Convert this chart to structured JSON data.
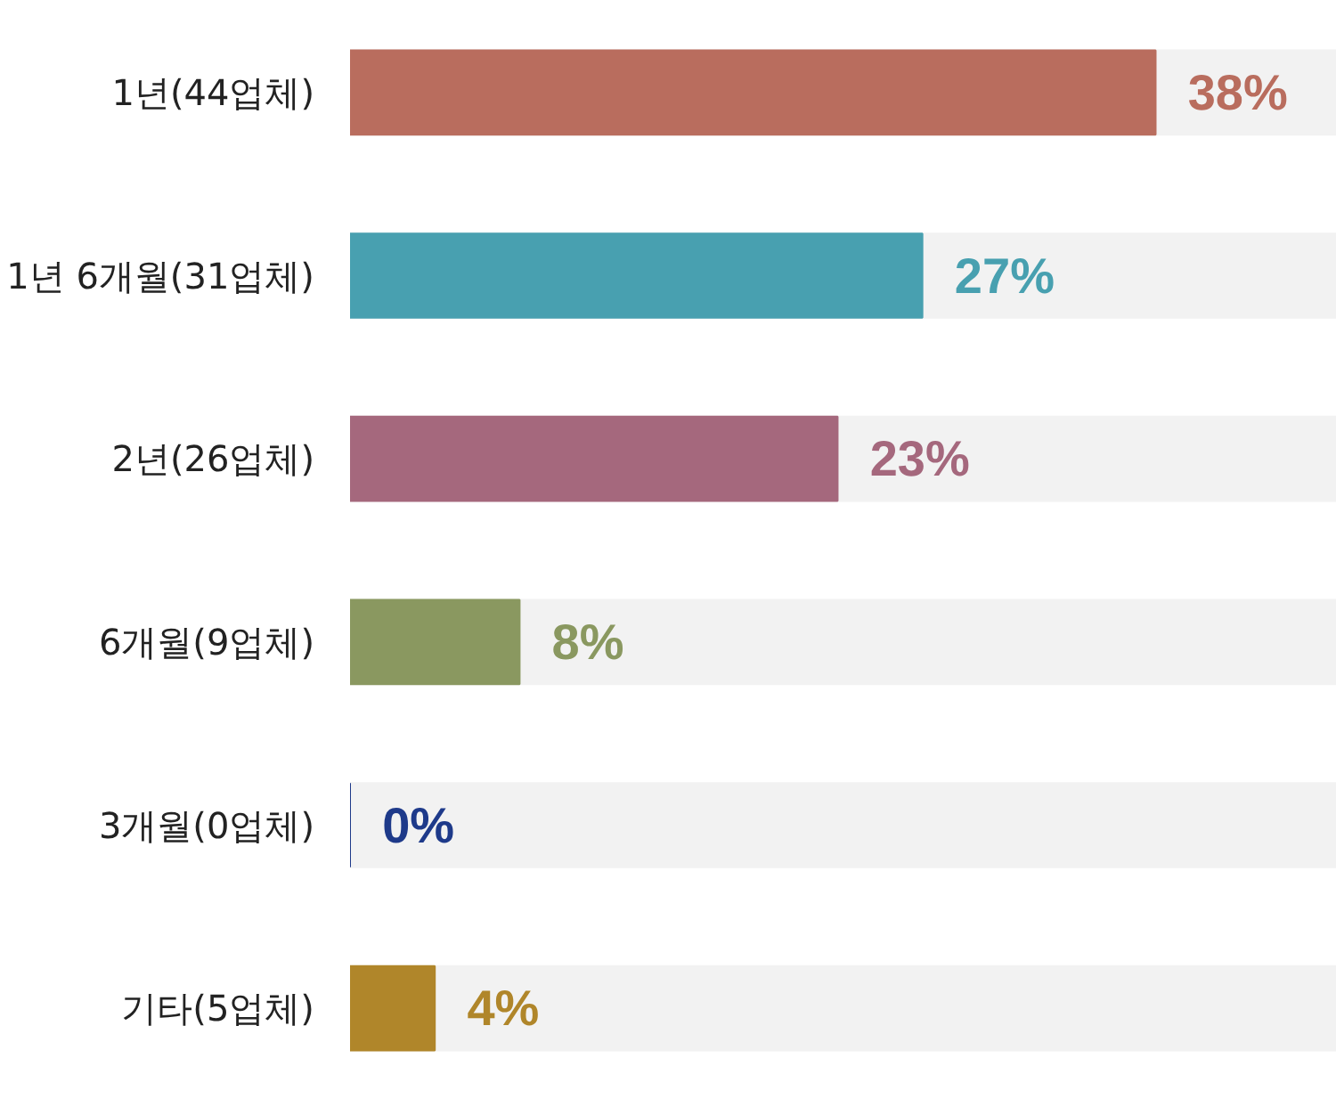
{
  "chart_data": {
    "type": "bar",
    "orientation": "horizontal",
    "categories": [
      "1년(44업체)",
      "1년 6개월(31업체)",
      "2년(26업체)",
      "6개월(9업체)",
      "3개월(0업체)",
      "기타(5업체)"
    ],
    "values": [
      38,
      27,
      23,
      8,
      0,
      4
    ],
    "colors": [
      "#b96d5e",
      "#48a0b0",
      "#a5687d",
      "#8a9860",
      "#1e3a8a",
      "#b0862a"
    ],
    "value_labels": [
      "38%",
      "27%",
      "23%",
      "8%",
      "0%",
      "4%"
    ],
    "grid": false
  }
}
